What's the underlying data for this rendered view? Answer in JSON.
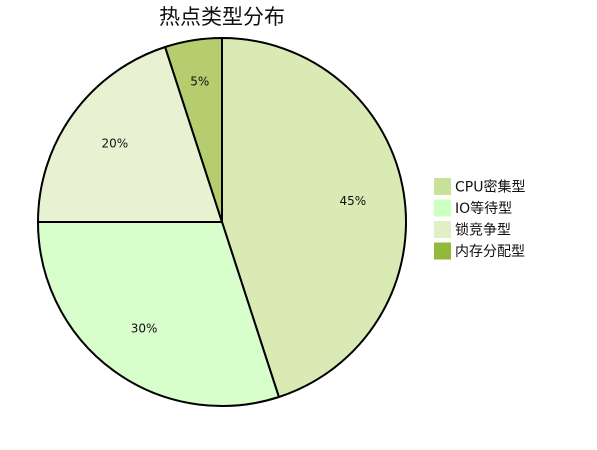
{
  "chart_data": {
    "type": "pie",
    "title": "热点类型分布",
    "categories": [
      "CPU密集型",
      "IO等待型",
      "锁竞争型",
      "内存分配型"
    ],
    "values": [
      45,
      30,
      20,
      5
    ],
    "labels": [
      "45%",
      "30%",
      "20%",
      "5%"
    ],
    "colors": [
      "#daeab4",
      "#d8fecb",
      "#e8f2d2",
      "#b5cd6f"
    ],
    "legend_colors": [
      "#c9e29a",
      "#ccffc0",
      "#e0f0c4",
      "#93b93a"
    ],
    "legend_position": "right",
    "start_angle_deg": 0,
    "direction": "clockwise"
  }
}
